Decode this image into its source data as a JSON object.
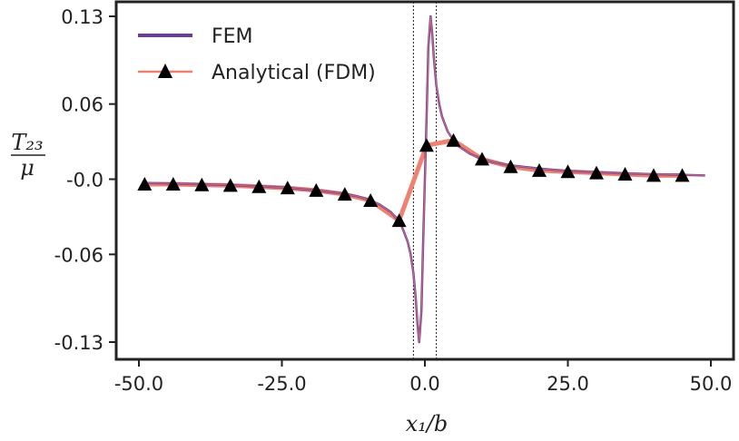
{
  "chart_data": {
    "type": "line",
    "title": "",
    "xlabel": "x₁/b",
    "ylabel_numerator": "T₂₃",
    "ylabel_denominator": "μ",
    "xlim": [
      -52,
      52
    ],
    "ylim": [
      -0.14,
      0.14
    ],
    "x_ticks": [
      -50,
      -25,
      0,
      25,
      50
    ],
    "x_tick_labels": [
      "-50.0",
      "-25.0",
      "0.0",
      "25.0",
      "50.0"
    ],
    "y_ticks": [
      0.13,
      0.06,
      0.0,
      -0.06,
      -0.13
    ],
    "y_tick_labels": [
      "0.13",
      "0.06",
      "-0.0",
      "-0.06",
      "-0.13"
    ],
    "vertical_reference_lines": [
      -2,
      2
    ],
    "legend_position": "top-left",
    "series": [
      {
        "name": "FEM",
        "style": "line",
        "color": "#6a3d9a",
        "x": [
          -49,
          -45,
          -40,
          -35,
          -30,
          -25,
          -20,
          -15,
          -12,
          -10,
          -8,
          -6,
          -5,
          -4,
          -3,
          -2.5,
          -2,
          -1.6,
          -1.3,
          -1.0,
          -0.6,
          -0.3,
          0.0,
          0.3,
          0.6,
          1.0,
          1.3,
          1.6,
          2.0,
          2.5,
          3,
          4,
          5,
          6,
          8,
          10,
          12,
          15,
          20,
          25,
          30,
          35,
          40,
          45,
          49
        ],
        "y": [
          -0.003,
          -0.0035,
          -0.004,
          -0.0045,
          -0.0055,
          -0.0065,
          -0.0085,
          -0.011,
          -0.0135,
          -0.016,
          -0.02,
          -0.026,
          -0.031,
          -0.038,
          -0.05,
          -0.06,
          -0.075,
          -0.095,
          -0.115,
          -0.13,
          -0.105,
          -0.05,
          0.0,
          0.05,
          0.105,
          0.13,
          0.115,
          0.095,
          0.075,
          0.06,
          0.05,
          0.038,
          0.031,
          0.026,
          0.02,
          0.016,
          0.0135,
          0.011,
          0.0085,
          0.0065,
          0.0055,
          0.0045,
          0.004,
          0.0035,
          0.003
        ]
      },
      {
        "name": "Analytical (FDM)",
        "style": "line-marker",
        "marker": "triangle",
        "color": "#f08070",
        "x": [
          -49,
          -44,
          -39,
          -34,
          -29,
          -24,
          -19,
          -14,
          -9.5,
          -4.5,
          0.3,
          5,
          10,
          15,
          20,
          25,
          30,
          35,
          40,
          45
        ],
        "y": [
          -0.004,
          -0.004,
          -0.0045,
          -0.005,
          -0.006,
          -0.007,
          -0.009,
          -0.012,
          -0.017,
          -0.033,
          0.027,
          0.031,
          0.016,
          0.01,
          0.007,
          0.006,
          0.005,
          0.004,
          0.003,
          0.003
        ]
      }
    ]
  },
  "colors": {
    "fem_line": "#6a3d9a",
    "analytical_line": "#f08070",
    "marker_fill": "#000000",
    "frame": "#222222"
  }
}
